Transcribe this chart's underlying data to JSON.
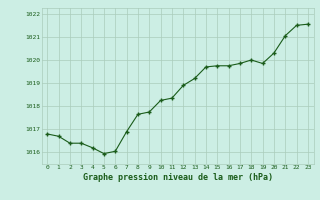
{
  "x": [
    0,
    1,
    2,
    3,
    4,
    5,
    6,
    7,
    8,
    9,
    10,
    11,
    12,
    13,
    14,
    15,
    16,
    17,
    18,
    19,
    20,
    21,
    22,
    23
  ],
  "y": [
    1016.8,
    1016.7,
    1016.4,
    1016.4,
    1016.2,
    1015.95,
    1016.05,
    1016.9,
    1017.65,
    1017.75,
    1018.25,
    1018.35,
    1018.9,
    1019.2,
    1019.7,
    1019.75,
    1019.75,
    1019.85,
    1020.0,
    1019.85,
    1020.3,
    1021.05,
    1021.5,
    1021.55
  ],
  "line_color": "#1a5c1a",
  "marker_color": "#1a5c1a",
  "bg_color": "#cceee4",
  "grid_color": "#aaccbb",
  "xlabel": "Graphe pression niveau de la mer (hPa)",
  "xlabel_color": "#1a5c1a",
  "tick_color": "#1a5c1a",
  "ylim_min": 1015.5,
  "ylim_max": 1022.25,
  "ytick_values": [
    1016,
    1017,
    1018,
    1019,
    1020,
    1021,
    1022
  ],
  "xtick_values": [
    0,
    1,
    2,
    3,
    4,
    5,
    6,
    7,
    8,
    9,
    10,
    11,
    12,
    13,
    14,
    15,
    16,
    17,
    18,
    19,
    20,
    21,
    22,
    23
  ]
}
